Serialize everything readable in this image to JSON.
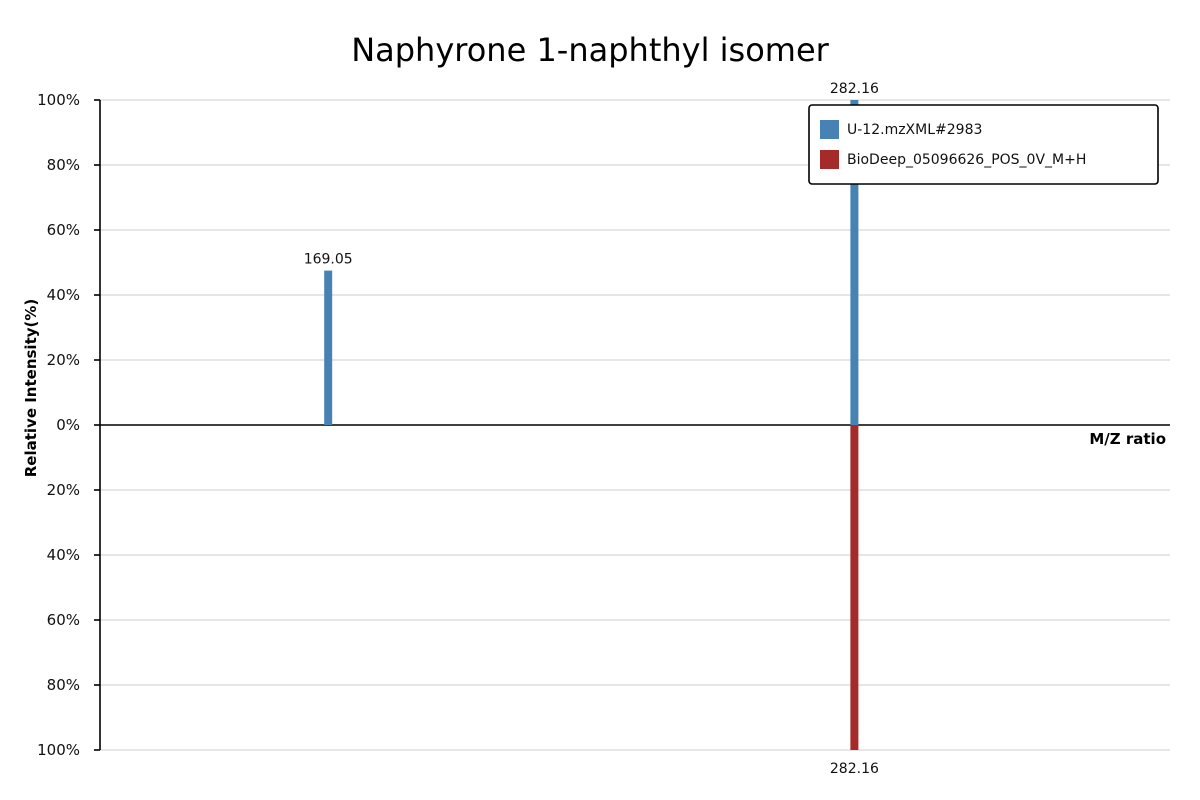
{
  "chart_data": {
    "type": "bar",
    "title": "Naphyrone 1-naphthyl isomer",
    "xlabel": "M/Z ratio",
    "ylabel": "Relative Intensity(%)",
    "ylim": [
      -100,
      100
    ],
    "y_ticks": [
      "100%",
      "80%",
      "60%",
      "40%",
      "20%",
      "0%",
      "20%",
      "40%",
      "60%",
      "80%",
      "100%"
    ],
    "y_tick_values": [
      100,
      80,
      60,
      40,
      20,
      0,
      -20,
      -40,
      -60,
      -80,
      -100
    ],
    "xlim": [
      120,
      350
    ],
    "grid": true,
    "legend_position": "top-right",
    "series": [
      {
        "name": "U-12.mzXML#2983",
        "color": "#4682b4",
        "direction": "up",
        "peaks": [
          {
            "mz": 169.05,
            "intensity": 47.5,
            "label": "169.05"
          },
          {
            "mz": 282.16,
            "intensity": 100,
            "label": "282.16"
          }
        ]
      },
      {
        "name": "BioDeep_05096626_POS_0V_M+H",
        "color": "#a52a2a",
        "direction": "down",
        "peaks": [
          {
            "mz": 282.16,
            "intensity": 100,
            "label": "282.16"
          }
        ]
      }
    ]
  }
}
